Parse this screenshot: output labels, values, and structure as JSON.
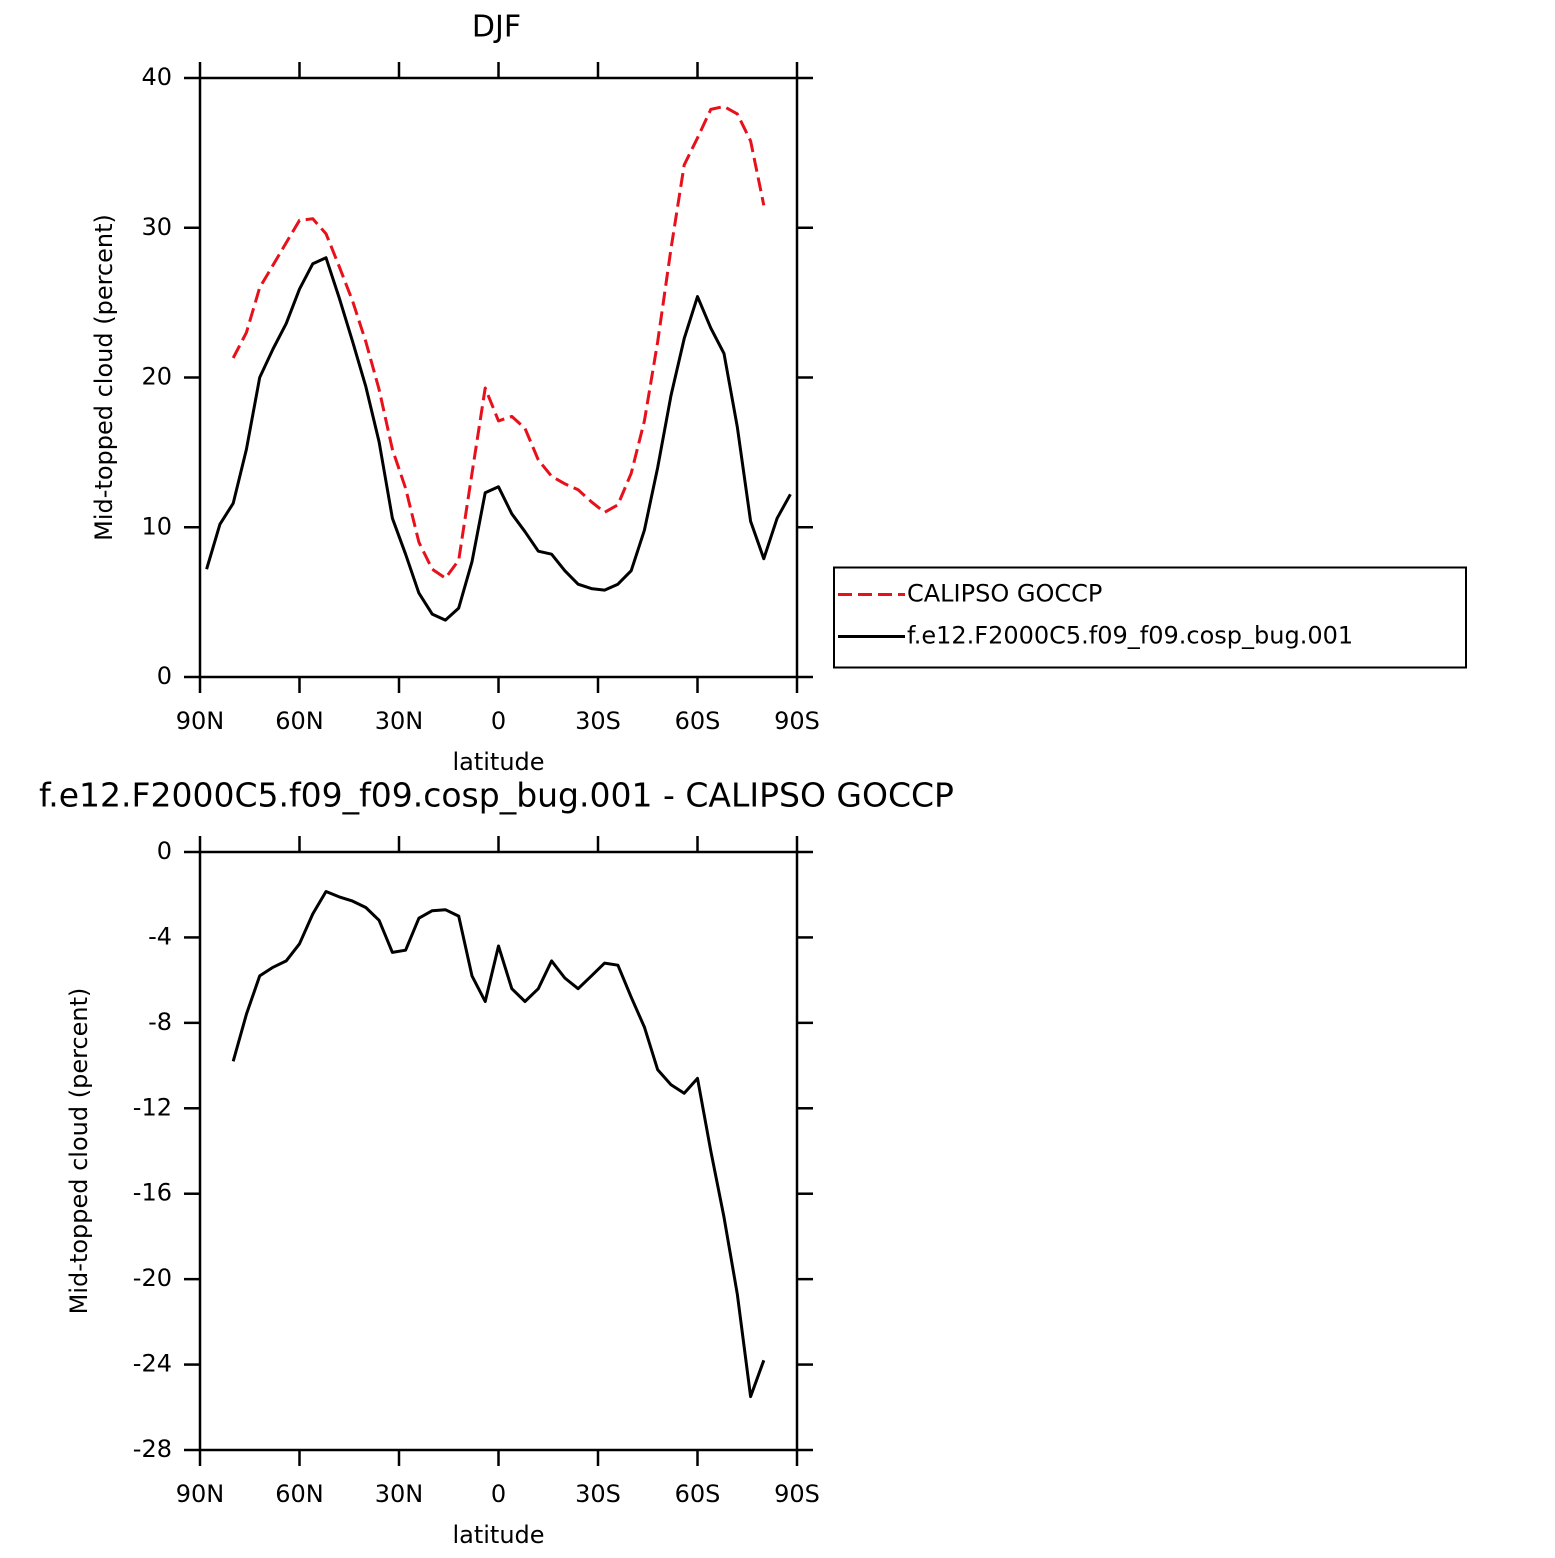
{
  "chart_data": [
    {
      "type": "line",
      "title": "DJF",
      "x_label": "latitude",
      "y_label": "Mid-topped cloud (percent)",
      "x": [
        88,
        84,
        80,
        76,
        72,
        68,
        64,
        60,
        56,
        52,
        48,
        44,
        40,
        36,
        32,
        28,
        24,
        20,
        16,
        12,
        8,
        4,
        0,
        -4,
        -8,
        -12,
        -16,
        -20,
        -24,
        -28,
        -32,
        -36,
        -40,
        -44,
        -48,
        -52,
        -56,
        -60,
        -64,
        -68,
        -72,
        -76,
        -80,
        -84,
        -88
      ],
      "xlim": [
        90,
        -90
      ],
      "xticks": [
        {
          "value": 90,
          "label": "90N"
        },
        {
          "value": 60,
          "label": "60N"
        },
        {
          "value": 30,
          "label": "30N"
        },
        0,
        {
          "value": -30,
          "label": "30S"
        },
        {
          "value": -60,
          "label": "60S"
        },
        {
          "value": -90,
          "label": "90S"
        }
      ],
      "ylim": [
        0,
        40
      ],
      "yticks": [
        0,
        10,
        20,
        30,
        40
      ],
      "legend": "right",
      "series": [
        {
          "name": "CALIPSO GOCCP",
          "color": "#e8111b",
          "dash": true,
          "values": [
            null,
            null,
            21.3,
            23.0,
            26.0,
            27.5,
            29.0,
            30.5,
            30.6,
            29.6,
            27.4,
            25.1,
            22.4,
            19.2,
            15.2,
            12.6,
            9.0,
            7.2,
            6.6,
            7.8,
            13.6,
            19.3,
            17.1,
            17.4,
            16.6,
            14.5,
            13.4,
            12.9,
            12.5,
            11.7,
            11.0,
            11.5,
            13.6,
            17.1,
            22.4,
            28.6,
            34.2,
            36.0,
            37.9,
            38.1,
            37.6,
            35.8,
            31.5,
            null,
            null
          ]
        },
        {
          "name": "f.e12.F2000C5.f09_f09.cosp_bug.001",
          "color": "#000000",
          "dash": false,
          "values": [
            7.2,
            10.2,
            11.6,
            15.2,
            20.0,
            21.9,
            23.6,
            25.9,
            27.6,
            28.0,
            25.3,
            22.4,
            19.4,
            15.7,
            10.6,
            8.2,
            5.6,
            4.2,
            3.8,
            4.6,
            7.7,
            12.3,
            12.7,
            10.9,
            9.7,
            8.4,
            8.2,
            7.1,
            6.2,
            5.9,
            5.8,
            6.2,
            7.1,
            9.8,
            14.0,
            18.8,
            22.6,
            25.4,
            23.3,
            21.6,
            16.7,
            10.4,
            7.9,
            10.6,
            12.2
          ]
        }
      ]
    },
    {
      "type": "line",
      "title": "f.e12.F2000C5.f09_f09.cosp_bug.001 - CALIPSO GOCCP",
      "x_label": "latitude",
      "y_label": "Mid-topped cloud (percent)",
      "x": [
        80,
        76,
        72,
        68,
        64,
        60,
        56,
        52,
        48,
        44,
        40,
        36,
        32,
        28,
        24,
        20,
        16,
        12,
        8,
        4,
        0,
        -4,
        -8,
        -12,
        -16,
        -20,
        -24,
        -28,
        -32,
        -36,
        -40,
        -44,
        -48,
        -52,
        -56,
        -60,
        -64,
        -68,
        -72,
        -76,
        -80
      ],
      "xlim": [
        90,
        -90
      ],
      "xticks": [
        {
          "value": 90,
          "label": "90N"
        },
        {
          "value": 60,
          "label": "60N"
        },
        {
          "value": 30,
          "label": "30N"
        },
        0,
        {
          "value": -30,
          "label": "30S"
        },
        {
          "value": -60,
          "label": "60S"
        },
        {
          "value": -90,
          "label": "90S"
        }
      ],
      "ylim": [
        -28,
        0
      ],
      "yticks": [
        -28,
        -24,
        -20,
        -16,
        -12,
        -8,
        -4,
        0
      ],
      "series": [
        {
          "color": "#000000",
          "dash": false,
          "values": [
            -9.8,
            -7.6,
            -5.8,
            -5.4,
            -5.1,
            -4.3,
            -2.9,
            -1.85,
            -2.1,
            -2.3,
            -2.6,
            -3.2,
            -4.7,
            -4.6,
            -3.1,
            -2.75,
            -2.7,
            -3.0,
            -5.8,
            -7.0,
            -4.4,
            -6.4,
            -7.0,
            -6.4,
            -5.1,
            -5.9,
            -6.4,
            -5.8,
            -5.2,
            -5.3,
            -6.8,
            -8.2,
            -10.2,
            -10.9,
            -11.3,
            -10.6,
            -14.0,
            -17.1,
            -20.7,
            -25.5,
            -23.8
          ]
        }
      ]
    }
  ]
}
